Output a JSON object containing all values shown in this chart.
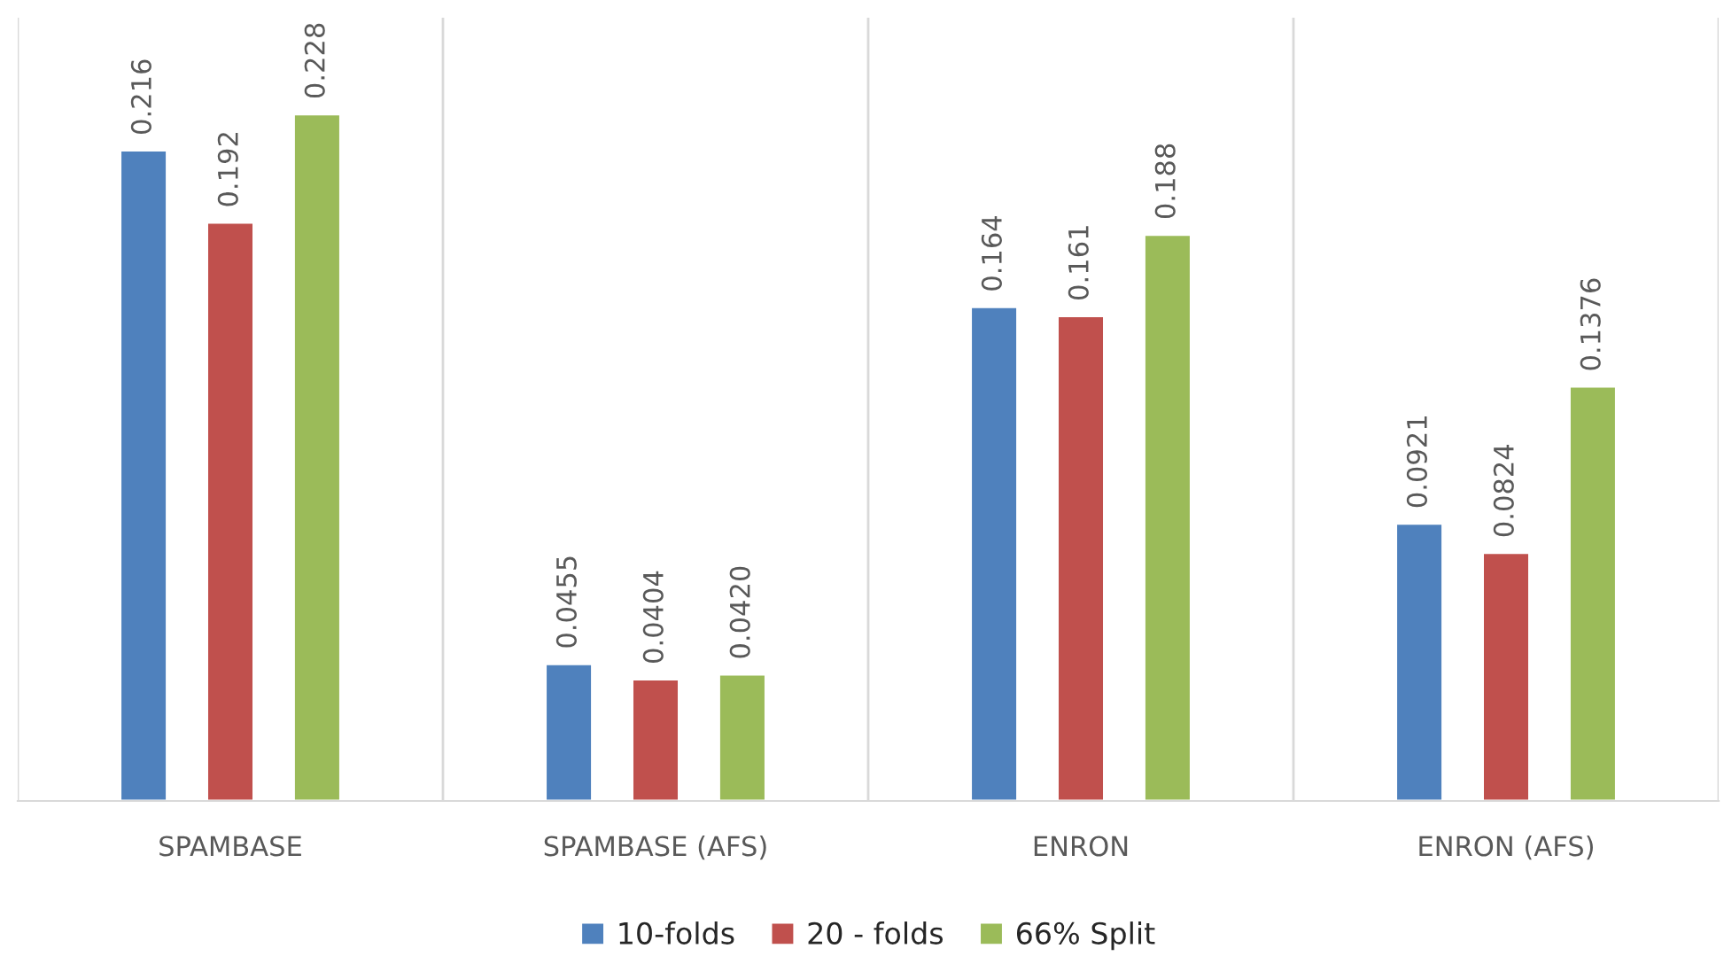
{
  "chart_data": {
    "type": "bar",
    "categories": [
      "SPAMBASE",
      "SPAMBASE (AFS)",
      "ENRON",
      "ENRON (AFS)"
    ],
    "series": [
      {
        "name": "10-folds",
        "color": "#4f81bd",
        "values": [
          0.216,
          0.0455,
          0.164,
          0.0921
        ],
        "value_labels": [
          "0.216",
          "0.0455",
          "0.164",
          "0.0921"
        ]
      },
      {
        "name": "20 - folds",
        "color": "#c0504d",
        "values": [
          0.192,
          0.0404,
          0.161,
          0.0824
        ],
        "value_labels": [
          "0.192",
          "0.0404",
          "0.161",
          "0.0824"
        ]
      },
      {
        "name": "66% Split",
        "color": "#9bbb59",
        "values": [
          0.228,
          0.042,
          0.188,
          0.1376
        ],
        "value_labels": [
          "0.228",
          "0.0420",
          "0.188",
          "0.1376"
        ]
      }
    ],
    "ylim": [
      0,
      0.26
    ],
    "grid": "x",
    "legend": "bottom",
    "tick_labels": "x"
  }
}
